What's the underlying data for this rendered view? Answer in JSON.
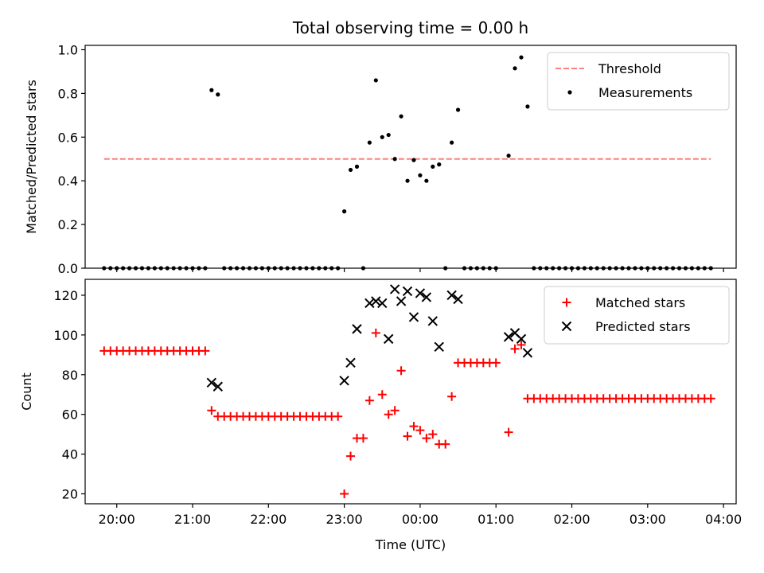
{
  "chart_data": [
    {
      "type": "scatter",
      "title": "Total observing time = 0.00 h",
      "ylabel": "Matched/Predicted stars",
      "xlabel": "",
      "xlim": [
        "19:35",
        "04:10"
      ],
      "ylim": [
        0,
        1.02
      ],
      "yticks": [
        0.0,
        0.2,
        0.4,
        0.6,
        0.8,
        1.0
      ],
      "ytick_labels": [
        "0.0",
        "0.2",
        "0.4",
        "0.6",
        "0.8",
        "1.0"
      ],
      "xticks": [
        "20:00",
        "21:00",
        "22:00",
        "23:00",
        "00:00",
        "01:00",
        "02:00",
        "03:00",
        "04:00"
      ],
      "legend_position": "upper right",
      "threshold": {
        "name": "Threshold",
        "value": 0.5,
        "x_range": [
          "19:50",
          "03:50"
        ],
        "color": "#ff8080",
        "style": "dashed"
      },
      "series": [
        {
          "name": "Measurements",
          "color": "#000000",
          "marker": "dot",
          "points": [
            [
              "19:50",
              0
            ],
            [
              "19:55",
              0
            ],
            [
              "20:00",
              0
            ],
            [
              "20:05",
              0
            ],
            [
              "20:10",
              0
            ],
            [
              "20:15",
              0
            ],
            [
              "20:20",
              0
            ],
            [
              "20:25",
              0
            ],
            [
              "20:30",
              0
            ],
            [
              "20:35",
              0
            ],
            [
              "20:40",
              0
            ],
            [
              "20:45",
              0
            ],
            [
              "20:50",
              0
            ],
            [
              "20:55",
              0
            ],
            [
              "21:00",
              0
            ],
            [
              "21:05",
              0
            ],
            [
              "21:10",
              0
            ],
            [
              "21:15",
              0.815
            ],
            [
              "21:20",
              0.795
            ],
            [
              "21:25",
              0
            ],
            [
              "21:30",
              0
            ],
            [
              "21:35",
              0
            ],
            [
              "21:40",
              0
            ],
            [
              "21:45",
              0
            ],
            [
              "21:50",
              0
            ],
            [
              "21:55",
              0
            ],
            [
              "22:00",
              0
            ],
            [
              "22:05",
              0
            ],
            [
              "22:10",
              0
            ],
            [
              "22:15",
              0
            ],
            [
              "22:20",
              0
            ],
            [
              "22:25",
              0
            ],
            [
              "22:30",
              0
            ],
            [
              "22:35",
              0
            ],
            [
              "22:40",
              0
            ],
            [
              "22:45",
              0
            ],
            [
              "22:50",
              0
            ],
            [
              "22:55",
              0
            ],
            [
              "23:00",
              0.26
            ],
            [
              "23:05",
              0.45
            ],
            [
              "23:10",
              0.465
            ],
            [
              "23:15",
              0
            ],
            [
              "23:20",
              0.575
            ],
            [
              "23:25",
              0.86
            ],
            [
              "23:30",
              0.6
            ],
            [
              "23:35",
              0.61
            ],
            [
              "23:40",
              0.5
            ],
            [
              "23:45",
              0.695
            ],
            [
              "23:50",
              0.4
            ],
            [
              "23:55",
              0.495
            ],
            [
              "00:00",
              0.425
            ],
            [
              "00:05",
              0.4
            ],
            [
              "00:10",
              0.465
            ],
            [
              "00:15",
              0.475
            ],
            [
              "00:20",
              0
            ],
            [
              "00:25",
              0.575
            ],
            [
              "00:30",
              0.725
            ],
            [
              "00:35",
              0
            ],
            [
              "00:40",
              0
            ],
            [
              "00:45",
              0
            ],
            [
              "00:50",
              0
            ],
            [
              "00:55",
              0
            ],
            [
              "01:00",
              0
            ],
            [
              "01:10",
              0.515
            ],
            [
              "01:15",
              0.915
            ],
            [
              "01:20",
              0.965
            ],
            [
              "01:25",
              0.74
            ],
            [
              "01:30",
              0
            ],
            [
              "01:35",
              0
            ],
            [
              "01:40",
              0
            ],
            [
              "01:45",
              0
            ],
            [
              "01:50",
              0
            ],
            [
              "01:55",
              0
            ],
            [
              "02:00",
              0
            ],
            [
              "02:05",
              0
            ],
            [
              "02:10",
              0
            ],
            [
              "02:15",
              0
            ],
            [
              "02:20",
              0
            ],
            [
              "02:25",
              0
            ],
            [
              "02:30",
              0
            ],
            [
              "02:35",
              0
            ],
            [
              "02:40",
              0
            ],
            [
              "02:45",
              0
            ],
            [
              "02:50",
              0
            ],
            [
              "02:55",
              0
            ],
            [
              "03:00",
              0
            ],
            [
              "03:05",
              0
            ],
            [
              "03:10",
              0
            ],
            [
              "03:15",
              0
            ],
            [
              "03:20",
              0
            ],
            [
              "03:25",
              0
            ],
            [
              "03:30",
              0
            ],
            [
              "03:35",
              0
            ],
            [
              "03:40",
              0
            ],
            [
              "03:45",
              0
            ],
            [
              "03:50",
              0
            ]
          ]
        }
      ]
    },
    {
      "type": "scatter",
      "title": "",
      "ylabel": "Count",
      "xlabel": "Time (UTC)",
      "xlim": [
        "19:35",
        "04:10"
      ],
      "ylim": [
        15,
        128
      ],
      "yticks": [
        20,
        40,
        60,
        80,
        100,
        120
      ],
      "ytick_labels": [
        "20",
        "40",
        "60",
        "80",
        "100",
        "120"
      ],
      "xticks": [
        "20:00",
        "21:00",
        "22:00",
        "23:00",
        "00:00",
        "01:00",
        "02:00",
        "03:00",
        "04:00"
      ],
      "xtick_labels": [
        "20:00",
        "21:00",
        "22:00",
        "23:00",
        "00:00",
        "01:00",
        "02:00",
        "03:00",
        "04:00"
      ],
      "legend_position": "upper right",
      "series": [
        {
          "name": "Matched stars",
          "color": "#ff0000",
          "marker": "plus",
          "points": [
            [
              "19:50",
              92
            ],
            [
              "19:55",
              92
            ],
            [
              "20:00",
              92
            ],
            [
              "20:05",
              92
            ],
            [
              "20:10",
              92
            ],
            [
              "20:15",
              92
            ],
            [
              "20:20",
              92
            ],
            [
              "20:25",
              92
            ],
            [
              "20:30",
              92
            ],
            [
              "20:35",
              92
            ],
            [
              "20:40",
              92
            ],
            [
              "20:45",
              92
            ],
            [
              "20:50",
              92
            ],
            [
              "20:55",
              92
            ],
            [
              "21:00",
              92
            ],
            [
              "21:05",
              92
            ],
            [
              "21:10",
              92
            ],
            [
              "21:15",
              62
            ],
            [
              "21:20",
              59
            ],
            [
              "21:25",
              59
            ],
            [
              "21:30",
              59
            ],
            [
              "21:35",
              59
            ],
            [
              "21:40",
              59
            ],
            [
              "21:45",
              59
            ],
            [
              "21:50",
              59
            ],
            [
              "21:55",
              59
            ],
            [
              "22:00",
              59
            ],
            [
              "22:05",
              59
            ],
            [
              "22:10",
              59
            ],
            [
              "22:15",
              59
            ],
            [
              "22:20",
              59
            ],
            [
              "22:25",
              59
            ],
            [
              "22:30",
              59
            ],
            [
              "22:35",
              59
            ],
            [
              "22:40",
              59
            ],
            [
              "22:45",
              59
            ],
            [
              "22:50",
              59
            ],
            [
              "22:55",
              59
            ],
            [
              "23:00",
              20
            ],
            [
              "23:05",
              39
            ],
            [
              "23:10",
              48
            ],
            [
              "23:15",
              48
            ],
            [
              "23:20",
              67
            ],
            [
              "23:25",
              101
            ],
            [
              "23:30",
              70
            ],
            [
              "23:35",
              60
            ],
            [
              "23:40",
              62
            ],
            [
              "23:45",
              82
            ],
            [
              "23:50",
              49
            ],
            [
              "23:55",
              54
            ],
            [
              "00:00",
              52
            ],
            [
              "00:05",
              48
            ],
            [
              "00:10",
              50
            ],
            [
              "00:15",
              45
            ],
            [
              "00:20",
              45
            ],
            [
              "00:25",
              69
            ],
            [
              "00:30",
              86
            ],
            [
              "00:35",
              86
            ],
            [
              "00:40",
              86
            ],
            [
              "00:45",
              86
            ],
            [
              "00:50",
              86
            ],
            [
              "00:55",
              86
            ],
            [
              "01:00",
              86
            ],
            [
              "01:10",
              51
            ],
            [
              "01:15",
              93
            ],
            [
              "01:20",
              95
            ],
            [
              "01:25",
              68
            ],
            [
              "01:30",
              68
            ],
            [
              "01:35",
              68
            ],
            [
              "01:40",
              68
            ],
            [
              "01:45",
              68
            ],
            [
              "01:50",
              68
            ],
            [
              "01:55",
              68
            ],
            [
              "02:00",
              68
            ],
            [
              "02:05",
              68
            ],
            [
              "02:10",
              68
            ],
            [
              "02:15",
              68
            ],
            [
              "02:20",
              68
            ],
            [
              "02:25",
              68
            ],
            [
              "02:30",
              68
            ],
            [
              "02:35",
              68
            ],
            [
              "02:40",
              68
            ],
            [
              "02:45",
              68
            ],
            [
              "02:50",
              68
            ],
            [
              "02:55",
              68
            ],
            [
              "03:00",
              68
            ],
            [
              "03:05",
              68
            ],
            [
              "03:10",
              68
            ],
            [
              "03:15",
              68
            ],
            [
              "03:20",
              68
            ],
            [
              "03:25",
              68
            ],
            [
              "03:30",
              68
            ],
            [
              "03:35",
              68
            ],
            [
              "03:40",
              68
            ],
            [
              "03:45",
              68
            ],
            [
              "03:50",
              68
            ]
          ]
        },
        {
          "name": "Predicted stars",
          "color": "#000000",
          "marker": "x",
          "points": [
            [
              "21:15",
              76
            ],
            [
              "21:20",
              74
            ],
            [
              "23:00",
              77
            ],
            [
              "23:05",
              86
            ],
            [
              "23:10",
              103
            ],
            [
              "23:20",
              116
            ],
            [
              "23:25",
              117
            ],
            [
              "23:30",
              116
            ],
            [
              "23:35",
              98
            ],
            [
              "23:40",
              123
            ],
            [
              "23:45",
              117
            ],
            [
              "23:50",
              122
            ],
            [
              "23:55",
              109
            ],
            [
              "00:00",
              121
            ],
            [
              "00:05",
              119
            ],
            [
              "00:10",
              107
            ],
            [
              "00:15",
              94
            ],
            [
              "00:25",
              120
            ],
            [
              "00:30",
              118
            ],
            [
              "01:10",
              99
            ],
            [
              "01:15",
              101
            ],
            [
              "01:20",
              98
            ],
            [
              "01:25",
              91
            ]
          ]
        }
      ]
    }
  ]
}
